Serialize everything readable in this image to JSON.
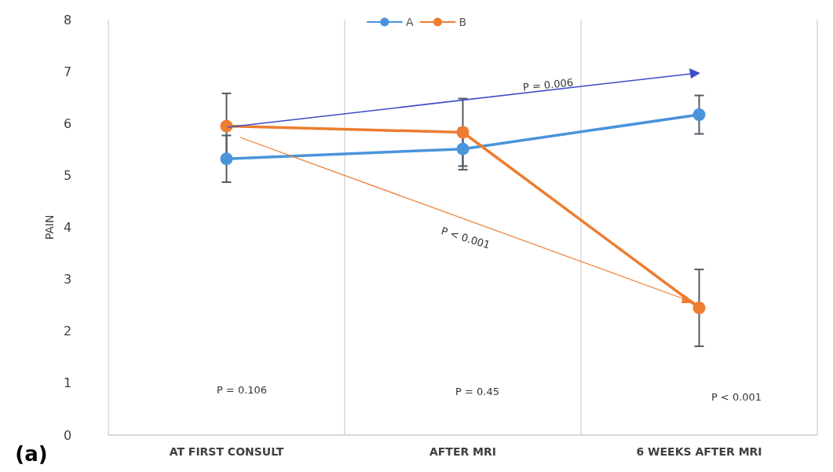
{
  "chart_data": {
    "type": "line",
    "ylabel": "PAIN",
    "categories": [
      "AT FIRST CONSULT",
      "AFTER MRI",
      "6 WEEKS AFTER MRI"
    ],
    "series": [
      {
        "name": "A",
        "color": "#4a94dc",
        "values": [
          5.32,
          5.51,
          6.17
        ],
        "errors": [
          0.45,
          0.4,
          0.37
        ]
      },
      {
        "name": "B",
        "color": "#ed7d31",
        "values": [
          5.95,
          5.83,
          2.45
        ],
        "errors": [
          0.63,
          0.65,
          0.74
        ]
      }
    ],
    "ylim": [
      0,
      8
    ],
    "yticks": [
      0,
      1,
      2,
      3,
      4,
      5,
      6,
      7,
      8
    ],
    "grid": "x",
    "legend": "top",
    "marker": "circle",
    "line_style": "solid",
    "annotations": [
      "P = 0.106",
      "P = 0.45",
      "P < 0.001",
      "P = 0.006",
      "P < 0.001",
      "(a)"
    ]
  }
}
